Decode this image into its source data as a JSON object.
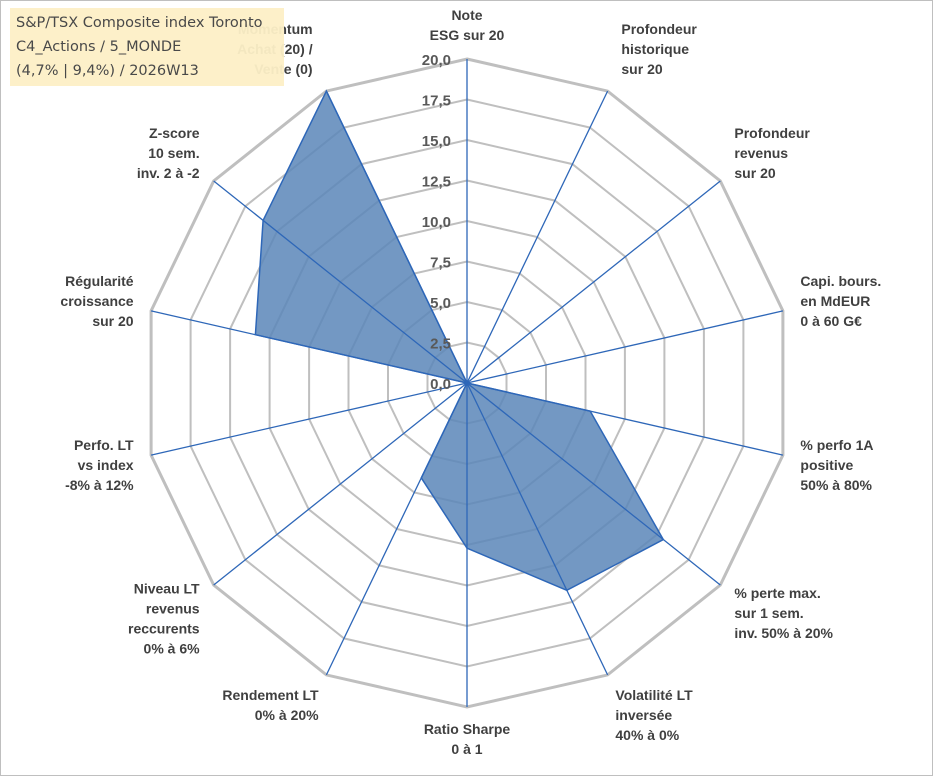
{
  "info_box": {
    "line1": "S&P/TSX Composite index Toronto",
    "line2": "C4_Actions / 5_MONDE",
    "line3": "(4,7% | 9,4%) / 2026W13"
  },
  "chart_data": {
    "type": "radar",
    "title": "S&P/TSX Composite index Toronto",
    "rlim": [
      0,
      20
    ],
    "tick_values": [
      0,
      2.5,
      5,
      7.5,
      10,
      12.5,
      15,
      17.5,
      20
    ],
    "tick_labels": [
      "0,0",
      "2,5",
      "5,0",
      "7,5",
      "10,0",
      "12,5",
      "15,0",
      "17,5",
      "20,0"
    ],
    "grid": true,
    "axes": [
      {
        "name": "esg",
        "label": [
          "Note",
          "ESG sur 20"
        ],
        "value": 0
      },
      {
        "name": "profondeur-historique",
        "label": [
          "Profondeur",
          "historique",
          "sur 20"
        ],
        "value": 0
      },
      {
        "name": "profondeur-revenus",
        "label": [
          "Profondeur",
          "revenus",
          "sur 20"
        ],
        "value": 0
      },
      {
        "name": "capi-bours",
        "label": [
          "Capi. bours.",
          "en MdEUR",
          "0 à 60 G€"
        ],
        "value": 0
      },
      {
        "name": "perfo-1a-positive",
        "label": [
          "% perfo 1A",
          "positive",
          "50% à 80%"
        ],
        "value": 7.8
      },
      {
        "name": "perte-max",
        "label": [
          "% perte max.",
          "sur 1 sem.",
          "inv. 50% à 20%"
        ],
        "value": 15.5
      },
      {
        "name": "volatilite-lt",
        "label": [
          "Volatilité LT",
          "inversée",
          "40% à 0%"
        ],
        "value": 14.2
      },
      {
        "name": "ratio-sharpe",
        "label": [
          "Ratio Sharpe",
          "0 à 1"
        ],
        "value": 10.2
      },
      {
        "name": "rendement-lt",
        "label": [
          "Rendement LT",
          "0% à 20%"
        ],
        "value": 6.5
      },
      {
        "name": "niveau-lt-revenus",
        "label": [
          "Niveau LT",
          "revenus",
          "reccurents",
          "0% à 6%"
        ],
        "value": 0
      },
      {
        "name": "perfo-lt-vs-index",
        "label": [
          "Perfo. LT",
          "vs index",
          "-8% à 12%"
        ],
        "value": 0
      },
      {
        "name": "regularite-croissance",
        "label": [
          "Régularité",
          "croissance",
          "sur 20"
        ],
        "value": 13.4
      },
      {
        "name": "z-score",
        "label": [
          "Z-score",
          "10 sem.",
          "inv. 2 à -2"
        ],
        "value": 16.1
      },
      {
        "name": "momentum",
        "label": [
          "Momentum",
          "Achat (20) /",
          "Vente (0)"
        ],
        "value": 20
      }
    ],
    "colors": {
      "fill": "#5b86b8",
      "stroke": "#2e67b8",
      "grid": "#bfbfbf",
      "spoke": "#2e67b8",
      "text": "#404040"
    }
  }
}
